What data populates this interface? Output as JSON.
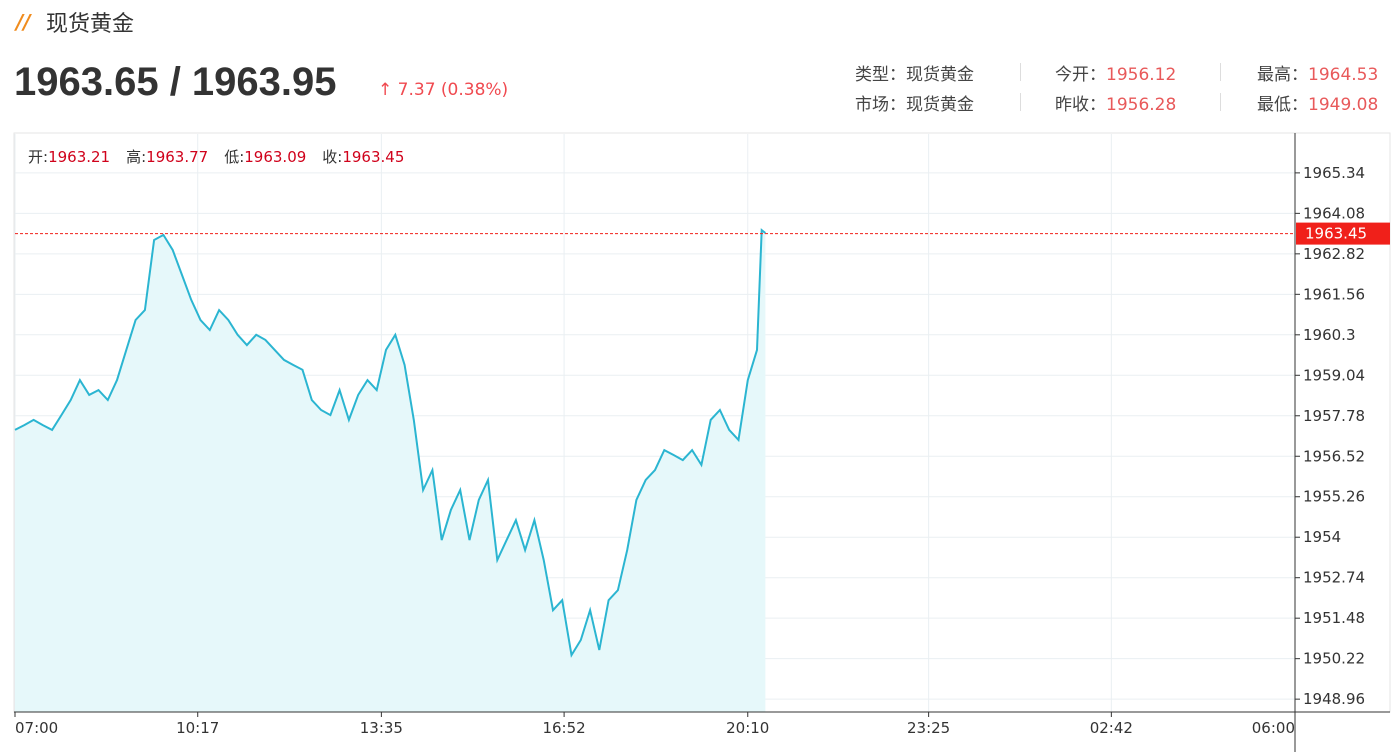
{
  "header": {
    "title": "现货黄金",
    "price": "1963.65 / 1963.95",
    "change": "7.37 (0.38%)",
    "info": [
      {
        "label": "类型：",
        "value": "现货黄金"
      },
      {
        "label": "今开：",
        "value": "1956.12"
      },
      {
        "label": "最高：",
        "value": "1964.53"
      },
      {
        "label": "市场：",
        "value": "现货黄金"
      },
      {
        "label": "昨收：",
        "value": "1956.28"
      },
      {
        "label": "最低：",
        "value": "1949.08"
      }
    ]
  },
  "ohlc": [
    {
      "label": "开:",
      "value": "1963.21"
    },
    {
      "label": "高:",
      "value": "1963.77"
    },
    {
      "label": "低:",
      "value": "1963.09"
    },
    {
      "label": "收:",
      "value": "1963.45"
    }
  ],
  "chart_data": {
    "type": "line",
    "color": "#2bb5d1",
    "fill": "#e6f8fa",
    "grid": true,
    "x": [
      0,
      10,
      20,
      30,
      40,
      50,
      60,
      70,
      80,
      90,
      100,
      110,
      120,
      130,
      140,
      150,
      160,
      170,
      180,
      190,
      200,
      210,
      220,
      230,
      240,
      250,
      260,
      270,
      280,
      290,
      300,
      310,
      320,
      330,
      340,
      350,
      360,
      370,
      380,
      390,
      400,
      410,
      420,
      430,
      440,
      450,
      460,
      470,
      480,
      490,
      500,
      510,
      520,
      530,
      540,
      550,
      560,
      570,
      580,
      590,
      600,
      610,
      620,
      630,
      640,
      650,
      660,
      670,
      680,
      690,
      700,
      710,
      720,
      730,
      740,
      750,
      760,
      770,
      780,
      790,
      800,
      805,
      809
    ],
    "values": [
      1957.34,
      1957.49,
      1957.65,
      1957.49,
      1957.34,
      1957.8,
      1958.27,
      1958.89,
      1958.43,
      1958.58,
      1958.27,
      1958.89,
      1959.83,
      1960.76,
      1961.07,
      1963.25,
      1963.41,
      1962.94,
      1962.16,
      1961.39,
      1960.76,
      1960.45,
      1961.07,
      1960.76,
      1960.3,
      1959.98,
      1960.3,
      1960.14,
      1959.83,
      1959.52,
      1959.36,
      1959.21,
      1958.27,
      1957.96,
      1957.8,
      1958.58,
      1957.65,
      1958.43,
      1958.89,
      1958.58,
      1959.83,
      1960.3,
      1959.36,
      1957.65,
      1955.47,
      1956.09,
      1953.91,
      1954.85,
      1955.47,
      1953.91,
      1955.16,
      1955.78,
      1953.29,
      1953.91,
      1954.53,
      1953.6,
      1954.53,
      1953.29,
      1951.73,
      1952.04,
      1950.33,
      1950.8,
      1951.73,
      1950.49,
      1952.04,
      1952.35,
      1953.6,
      1955.16,
      1955.78,
      1956.09,
      1956.71,
      1956.56,
      1956.4,
      1956.71,
      1956.25,
      1957.65,
      1957.96,
      1957.34,
      1957.03,
      1958.89,
      1959.83,
      1963.56,
      1963.47
    ],
    "xlim": [
      0,
      1380
    ],
    "xticks": [
      {
        "value": 0,
        "label": "07:00"
      },
      {
        "value": 197,
        "label": "10:17"
      },
      {
        "value": 395,
        "label": "13:35"
      },
      {
        "value": 592,
        "label": "16:52"
      },
      {
        "value": 790,
        "label": "20:10"
      },
      {
        "value": 985,
        "label": "23:25"
      },
      {
        "value": 1182,
        "label": "02:42"
      },
      {
        "value": 1380,
        "label": "06:00"
      }
    ],
    "ylim": [
      1948.56,
      1966.55
    ],
    "yticks": [
      1948.96,
      1950.22,
      1951.48,
      1952.74,
      1954.0,
      {
        "value": 1954,
        "label": "1954.00"
      },
      1955.26,
      1956.52,
      1957.78,
      1959.04,
      1960.3,
      1961.56,
      1962.82,
      1964.08,
      1965.34
    ],
    "last_price": 1963.45,
    "last_price_color": "#f0201a"
  }
}
